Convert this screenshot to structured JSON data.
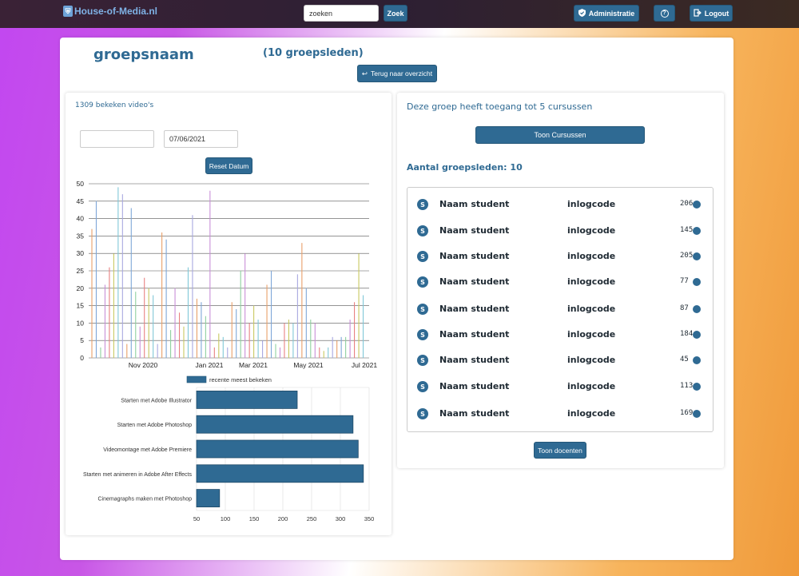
{
  "topbar": {
    "brand": "House-of-Media.nl",
    "search": {
      "value": "zoeken",
      "button": "Zoek"
    },
    "admin_label": "Administratie",
    "help_label": "?",
    "logout_label": "Logout"
  },
  "header": {
    "group_name": "groepsnaam",
    "member_count": "(10 groepsleden)",
    "back_label": "Terug naar overzicht"
  },
  "left": {
    "watched": "1309 bekeken video's",
    "date_from": "",
    "date_to": "07/06/2021",
    "reset_label": "Reset Datum"
  },
  "right": {
    "access_text": "Deze groep heeft toegang tot 5 cursussen",
    "show_courses": "Toon Cursussen",
    "members_title": "Aantal groepsleden: 10",
    "show_teachers": "Toon docenten",
    "students": [
      {
        "initial": "S",
        "name": "Naam student",
        "code": "inlogcode",
        "count": "206"
      },
      {
        "initial": "S",
        "name": "Naam student",
        "code": "inlogcode",
        "count": "145"
      },
      {
        "initial": "S",
        "name": "Naam student",
        "code": "inlogcode",
        "count": "205"
      },
      {
        "initial": "S",
        "name": "Naam student",
        "code": "inlogcode",
        "count": "77"
      },
      {
        "initial": "S",
        "name": "Naam student",
        "code": "inlogcode",
        "count": "87"
      },
      {
        "initial": "S",
        "name": "Naam student",
        "code": "inlogcode",
        "count": "184"
      },
      {
        "initial": "S",
        "name": "Naam student",
        "code": "inlogcode",
        "count": "45"
      },
      {
        "initial": "S",
        "name": "Naam student",
        "code": "inlogcode",
        "count": "113"
      },
      {
        "initial": "S",
        "name": "Naam student",
        "code": "inlogcode",
        "count": "169"
      }
    ]
  },
  "chart_data": [
    {
      "type": "bar",
      "title": "",
      "xlabel": "",
      "ylabel": "",
      "ylim": [
        0,
        50
      ],
      "yticks": [
        "0",
        "5",
        "10",
        "15",
        "20",
        "25",
        "30",
        "35",
        "40",
        "45",
        "50"
      ],
      "xticks": [
        "Nov 2020",
        "Jan 2021",
        "Mar 2021",
        "May 2021",
        "Jul 2021"
      ],
      "grid": true,
      "series_colors": [
        "#e9a06a",
        "#7fa7d8",
        "#8fd0a0",
        "#c98fd8",
        "#e88080",
        "#c8c860",
        "#80c8d8",
        "#a8a8e0"
      ],
      "values": [
        37,
        45,
        3,
        21,
        26,
        30,
        49,
        47,
        4,
        43,
        19,
        9,
        23,
        20,
        18,
        4,
        36,
        34,
        8,
        20,
        13,
        9,
        26,
        41,
        17,
        16,
        12,
        48,
        3,
        7,
        6,
        3,
        16,
        14,
        25,
        30,
        10,
        15,
        11,
        5,
        21,
        25,
        4,
        3,
        10,
        11,
        10,
        24,
        33,
        20,
        11,
        10,
        3,
        2,
        3,
        6,
        5,
        6,
        6,
        11,
        16,
        30,
        18
      ]
    },
    {
      "type": "bar",
      "orientation": "horizontal",
      "legend": [
        "recente meest bekeken"
      ],
      "categories": [
        "Starten met Adobe Illustrator",
        "Starten met Adobe Photoshop",
        "Videomontage met Adobe Premiere",
        "Starten met animeren in Adobe After Effects",
        "Cinemagraphs maken met Photoshop"
      ],
      "values": [
        225,
        322,
        331,
        340,
        90
      ],
      "xlim": [
        50,
        350
      ],
      "xticks": [
        "50",
        "100",
        "150",
        "200",
        "250",
        "300",
        "350"
      ],
      "color": "#2f6a93"
    }
  ]
}
